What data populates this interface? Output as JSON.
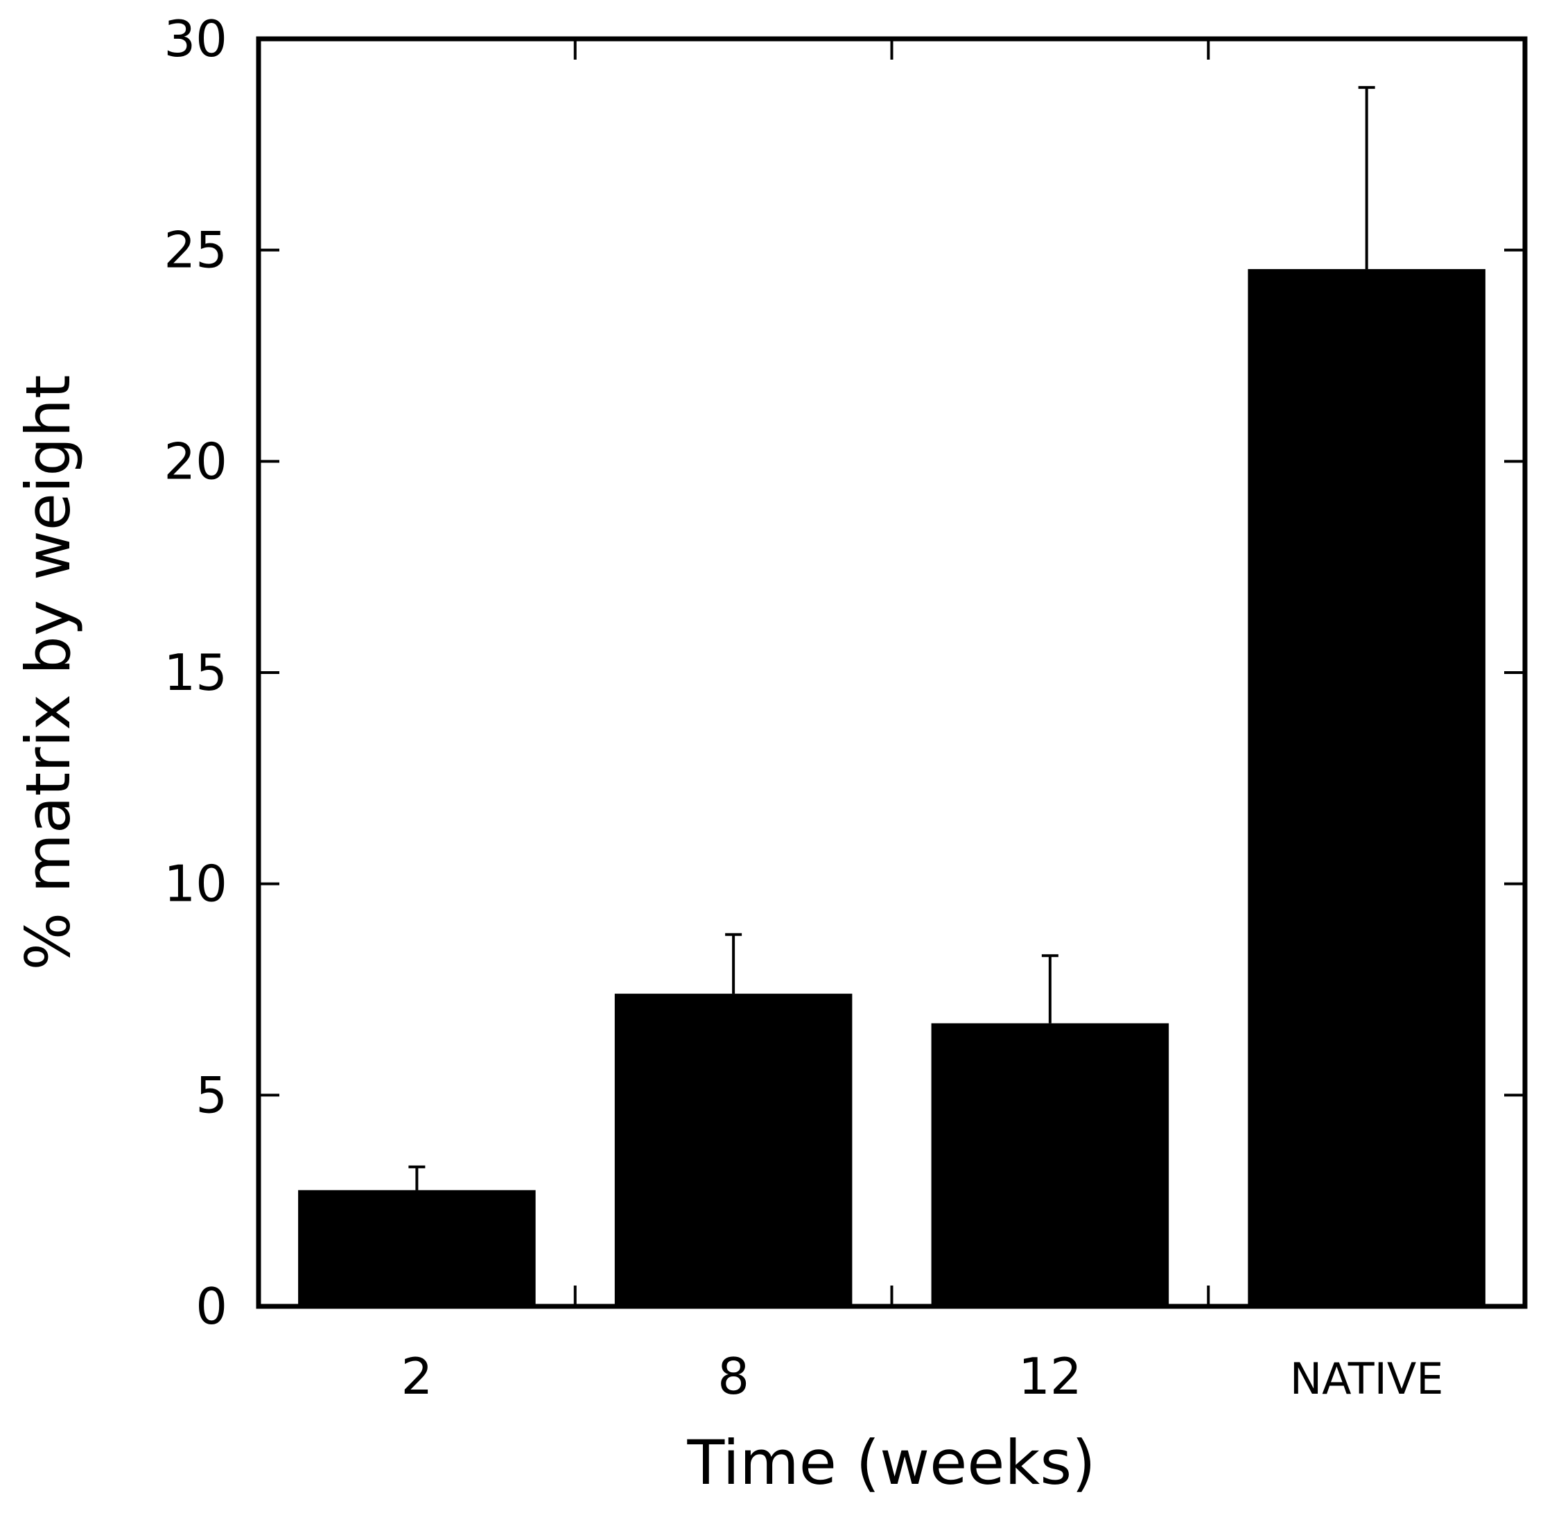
{
  "chart_data": {
    "type": "bar",
    "categories": [
      "2",
      "8",
      "12",
      "NATIVE"
    ],
    "values": [
      2.75,
      7.4,
      6.7,
      24.55
    ],
    "errors": [
      0.55,
      1.4,
      1.6,
      4.3
    ],
    "xlabel": "Time (weeks)",
    "ylabel": "% matrix by weight",
    "ylim": [
      0,
      30
    ],
    "yticks": [
      0,
      5,
      10,
      15,
      20,
      25,
      30
    ],
    "ytick_labels": [
      "0",
      "5",
      "10",
      "15",
      "20",
      "25",
      "30"
    ],
    "bar_color": "#000000",
    "grid": false,
    "legend": "none"
  }
}
